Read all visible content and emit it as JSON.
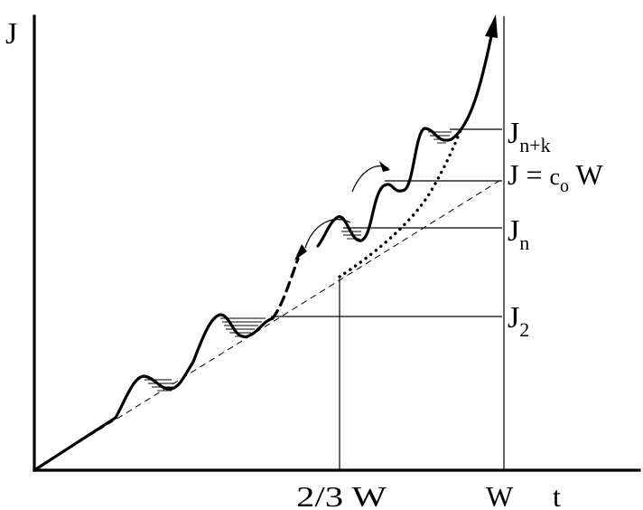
{
  "labels": {
    "y_axis": "J",
    "x_axis": "t",
    "tick_two_thirds": "2/3 W",
    "tick_w": "W",
    "level_j2": {
      "main": "J",
      "sub": "2"
    },
    "level_jn": {
      "main": "J",
      "sub": "n"
    },
    "level_jnk": {
      "main": "J",
      "sub": "n+k"
    },
    "line_eq": {
      "left": "J = ",
      "c": "c",
      "c_sub": "o",
      "w": " W"
    }
  }
}
